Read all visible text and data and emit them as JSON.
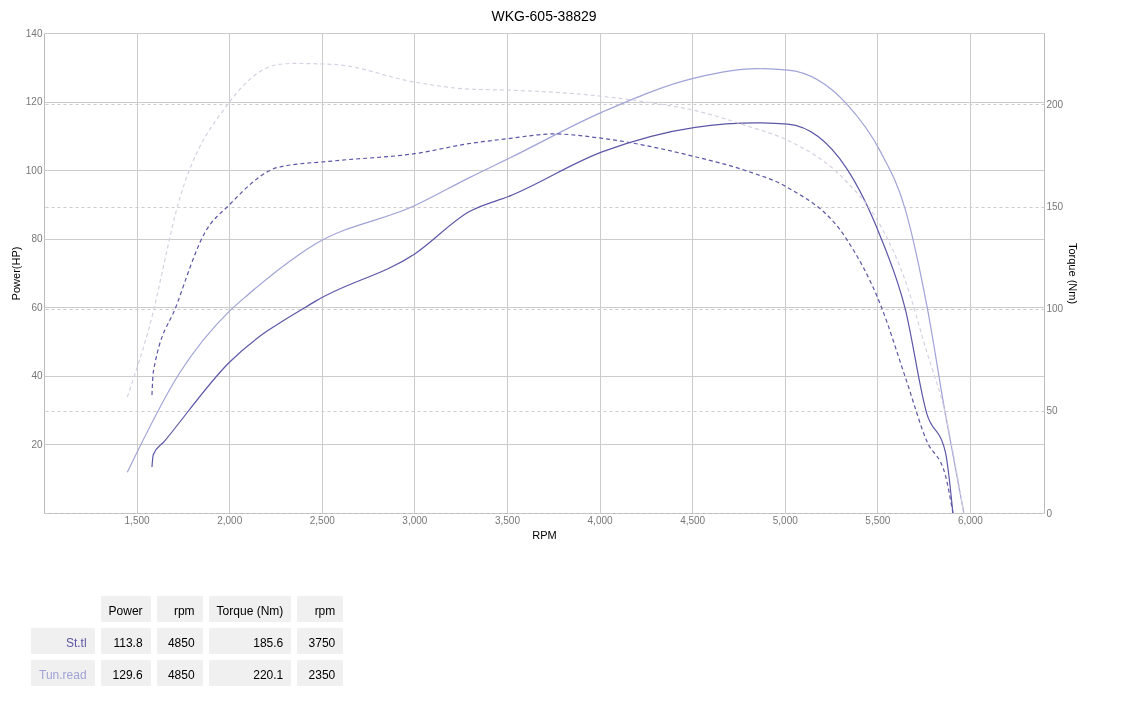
{
  "chart_data": {
    "type": "line",
    "title": "WKG-605-38829",
    "xlabel": "RPM",
    "ylabel": "Power(HP)",
    "y2label": "Torque (Nm)",
    "xlim": [
      1000,
      6400
    ],
    "xticks": [
      {
        "value": 1500,
        "label": "1,500"
      },
      {
        "value": 2000,
        "label": "2,000"
      },
      {
        "value": 2500,
        "label": "2,500"
      },
      {
        "value": 3000,
        "label": "3,000"
      },
      {
        "value": 3500,
        "label": "3,500"
      },
      {
        "value": 4000,
        "label": "4,000"
      },
      {
        "value": 4500,
        "label": "4,500"
      },
      {
        "value": 5000,
        "label": "5,000"
      },
      {
        "value": 5500,
        "label": "5,500"
      },
      {
        "value": 6000,
        "label": "6,000"
      }
    ],
    "ylim": [
      0,
      140
    ],
    "yticks": [
      20,
      40,
      60,
      80,
      100,
      120,
      140
    ],
    "y2lim": [
      0,
      235
    ],
    "y2ticks": [
      0,
      50,
      100,
      150,
      200
    ],
    "grid": true,
    "series": [
      {
        "name": "St.tl",
        "color": "#5b57a6",
        "line_style": "solid",
        "x": [
          1583,
          1590,
          1650,
          2000,
          2467,
          3000,
          3300,
          3517,
          4017,
          4517,
          4850,
          5017,
          5333,
          5517,
          5650,
          5767,
          5867,
          5908
        ],
        "values": [
          13.4,
          17,
          20.9,
          43.9,
          61.8,
          75.5,
          88,
          92.5,
          105.4,
          112.5,
          113.8,
          113.4,
          100.6,
          80.6,
          59.7,
          29,
          17.9,
          0
        ]
      },
      {
        "name": "Tun.read",
        "color": "#9fa3d6",
        "line_style": "solid",
        "x": [
          1450,
          1733,
          2000,
          2100,
          2467,
          3000,
          3300,
          3517,
          4017,
          4517,
          4850,
          5017,
          5333,
          5517,
          5650,
          5767,
          5867,
          5967
        ],
        "values": [
          11.9,
          40.9,
          58.8,
          63.6,
          78.5,
          89.6,
          97.9,
          103.6,
          117,
          126.9,
          129.6,
          129.2,
          119.4,
          105.4,
          88.7,
          60.6,
          29,
          0
        ]
      },
      {
        "color": "#5b57a6",
        "line_style": "dashed",
        "axis": "y2",
        "x": [
          1583,
          1590,
          1717,
          1867,
          2000,
          2267,
          2567,
          3000,
          3300,
          3517,
          3750,
          4017,
          4517,
          4800,
          5017,
          5333,
          5517,
          5650,
          5767,
          5867,
          5908
        ],
        "values": [
          57.8,
          68.8,
          102,
          137,
          150.8,
          169.3,
          172.4,
          175.9,
          180.9,
          183.4,
          185.6,
          183.4,
          174.4,
          167.3,
          159.3,
          134.2,
          102,
          66.8,
          35.2,
          18.6,
          0
        ]
      },
      {
        "color": "#d8d0e2",
        "line_style": "dashed",
        "axis": "y2",
        "x": [
          1450,
          1567,
          1733,
          2000,
          2267,
          2350,
          2567,
          3000,
          3300,
          3517,
          4017,
          4267,
          4517,
          4800,
          5017,
          5333,
          5517,
          5650,
          5767,
          5867,
          5967
        ],
        "values": [
          56.8,
          90.5,
          154,
          201,
          219.6,
          220.1,
          219.6,
          211,
          207.5,
          207,
          204,
          201,
          197,
          189.4,
          182.4,
          162.3,
          140.7,
          114,
          78.9,
          48.7,
          0
        ]
      }
    ],
    "annotations": [
      "Power",
      "rpm",
      "Torque (Nm)",
      "rpm",
      "113.8",
      "4850",
      "185.6",
      "3750",
      "129.6",
      "4850",
      "220.1",
      "2350"
    ]
  }
}
